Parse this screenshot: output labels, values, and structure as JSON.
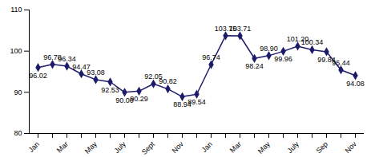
{
  "chart_data": {
    "type": "line",
    "categories": [
      "Jan",
      null,
      "Mar",
      null,
      "May",
      null,
      "July",
      null,
      "Sept",
      null,
      "Nov",
      null,
      "Jan",
      null,
      "Mar",
      null,
      "May",
      null,
      "July",
      null,
      "Sep",
      null,
      "Nov"
    ],
    "values": [
      96.02,
      96.78,
      96.34,
      94.47,
      93.08,
      92.53,
      90.0,
      90.29,
      92.05,
      90.82,
      88.94,
      89.54,
      96.74,
      103.75,
      103.71,
      98.24,
      98.9,
      99.96,
      101.2,
      100.34,
      99.84,
      95.44,
      94.08
    ],
    "value_labels": [
      "96.02",
      "96.78",
      "96.34",
      "94.47",
      "93.08",
      "92.53",
      "90.00",
      "90.29",
      "92.05",
      "90.82",
      "88.94",
      "89.54",
      "96.74",
      "103.75",
      "103.71",
      "98.24",
      "98.90",
      "99.96",
      "101.20",
      "100.34",
      "99.84",
      "95.44",
      "94.08"
    ],
    "color": "#1c1c6b",
    "marker": "diamond",
    "line_style": "solid",
    "data_labels": true,
    "grid": false,
    "ylim": [
      80,
      110
    ],
    "yticks": [
      80,
      90,
      100,
      110
    ]
  }
}
